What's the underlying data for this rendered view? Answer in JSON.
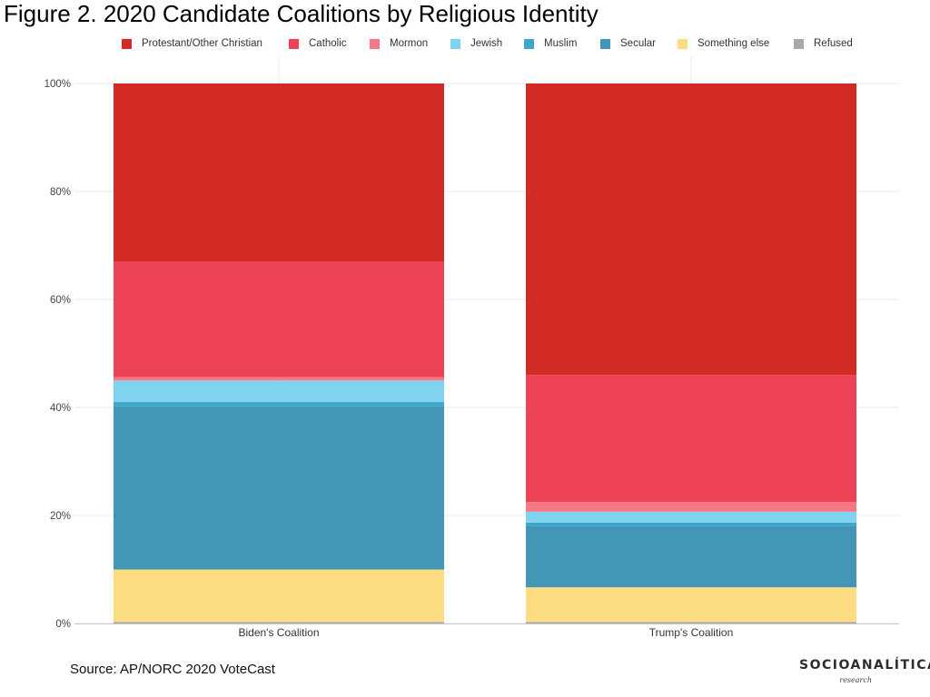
{
  "title": "Figure 2. 2020 Candidate Coalitions by Religious Identity",
  "source": "Source: AP/NORC 2020 VoteCast",
  "logo": {
    "wordmark": "SOCIOANALÍTICA",
    "subtitle": "research"
  },
  "chart_data": {
    "type": "bar",
    "stacked": true,
    "title": "Figure 2. 2020 Candidate Coalitions by Religious Identity",
    "xlabel": "",
    "ylabel": "",
    "ylim": [
      0,
      100
    ],
    "yticks": [
      0,
      20,
      40,
      60,
      80,
      100
    ],
    "ytick_labels": [
      "0%",
      "20%",
      "40%",
      "60%",
      "80%",
      "100%"
    ],
    "grid": true,
    "legend": "top",
    "categories": [
      "Biden's Coalition",
      "Trump's Coalition"
    ],
    "series": [
      {
        "name": "Refused",
        "color": "#a8a8a8",
        "values": [
          0.3,
          0.3
        ]
      },
      {
        "name": "Something else",
        "color": "#fddc82",
        "values": [
          9.7,
          6.4
        ]
      },
      {
        "name": "Secular",
        "color": "#4396b6",
        "values": [
          30.2,
          11.4
        ]
      },
      {
        "name": "Muslim",
        "color": "#3ca7c9",
        "values": [
          0.8,
          0.6
        ]
      },
      {
        "name": "Jewish",
        "color": "#80d3ee",
        "values": [
          4.0,
          2.0
        ]
      },
      {
        "name": "Mormon",
        "color": "#f47985",
        "values": [
          0.6,
          1.8
        ]
      },
      {
        "name": "Catholic",
        "color": "#ee4357",
        "values": [
          21.4,
          23.5
        ]
      },
      {
        "name": "Protestant/Other Christian",
        "color": "#d22a24",
        "values": [
          33.0,
          54.0
        ]
      }
    ],
    "legend_order": [
      "Protestant/Other Christian",
      "Catholic",
      "Mormon",
      "Jewish",
      "Muslim",
      "Secular",
      "Something else",
      "Refused"
    ]
  }
}
